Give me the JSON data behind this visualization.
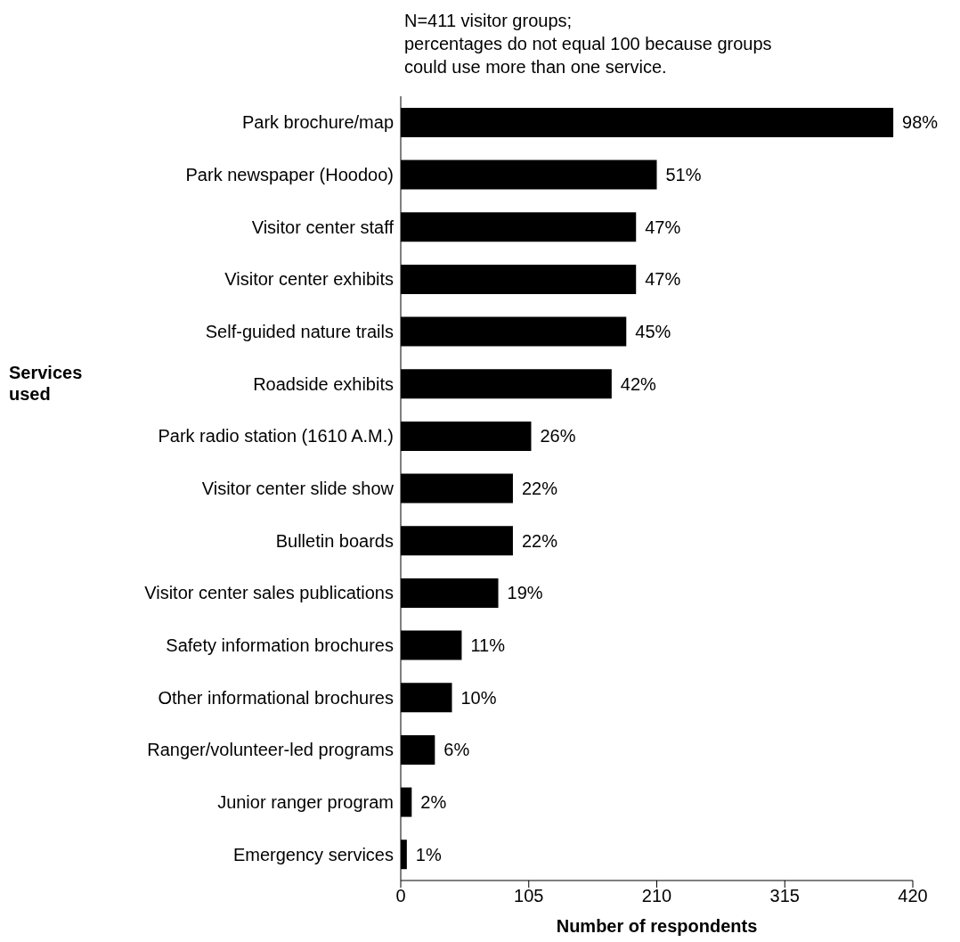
{
  "chart_data": {
    "type": "bar",
    "orientation": "horizontal",
    "categories": [
      "Park brochure/map",
      "Park newspaper  (Hoodoo)",
      "Visitor center staff",
      "Visitor center exhibits",
      "Self-guided nature trails",
      "Roadside exhibits",
      "Park radio station (1610 A.M.)",
      "Visitor center slide show",
      "Bulletin boards",
      "Visitor center sales publications",
      "Safety information brochures",
      "Other informational brochures",
      "Ranger/volunteer-led programs",
      "Junior ranger program",
      "Emergency services"
    ],
    "values": [
      404,
      210,
      193,
      193,
      185,
      173,
      107,
      92,
      92,
      80,
      50,
      42,
      28,
      9,
      5
    ],
    "color": "#000000",
    "xlim": [
      0,
      420
    ],
    "xticks": [
      0,
      105,
      210,
      315,
      420
    ],
    "xlabel": "Number of respondents",
    "ylabel": "Services used",
    "annotations": [
      "N=411 visitor groups;\npercentages do not equal 100 because groups\ncould use more than one service.",
      {
        "text": "98%",
        "x": 404,
        "y": "Park brochure/map"
      },
      {
        "text": "51%",
        "x": 210,
        "y": "Park newspaper  (Hoodoo)"
      },
      {
        "text": "47%",
        "x": 193,
        "y": "Visitor center staff"
      },
      {
        "text": "47%",
        "x": 193,
        "y": "Visitor center exhibits"
      },
      {
        "text": "45%",
        "x": 185,
        "y": "Self-guided nature trails"
      },
      {
        "text": "42%",
        "x": 173,
        "y": "Roadside exhibits"
      },
      {
        "text": "26%",
        "x": 107,
        "y": "Park radio station (1610 A.M.)"
      },
      {
        "text": "22%",
        "x": 92,
        "y": "Visitor center slide show"
      },
      {
        "text": "22%",
        "x": 92,
        "y": "Bulletin boards"
      },
      {
        "text": "19%",
        "x": 80,
        "y": "Visitor center sales publications"
      },
      {
        "text": "11%",
        "x": 50,
        "y": "Safety information brochures"
      },
      {
        "text": "10%",
        "x": 42,
        "y": "Other informational brochures"
      },
      {
        "text": "6%",
        "x": 28,
        "y": "Ranger/volunteer-led programs"
      },
      {
        "text": "2%",
        "x": 9,
        "y": "Junior ranger program"
      },
      {
        "text": "1%",
        "x": 5,
        "y": "Emergency services"
      }
    ],
    "grid": false,
    "legend": false
  }
}
